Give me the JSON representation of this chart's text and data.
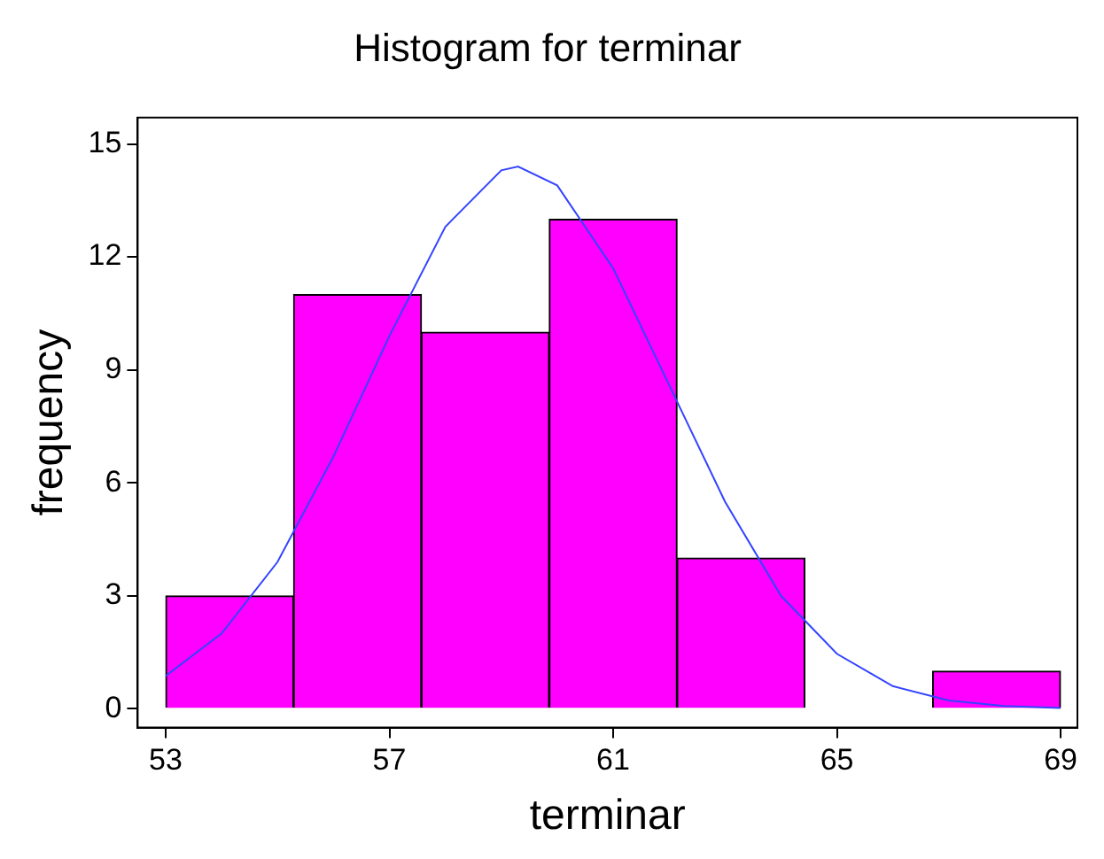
{
  "chart_data": {
    "type": "histogram",
    "title": "Histogram for terminar",
    "xlabel": "terminar",
    "ylabel": "frequency",
    "bins": [
      53,
      55.29,
      57.57,
      59.86,
      62.14,
      64.43,
      66.71,
      69
    ],
    "values": [
      3,
      11,
      10,
      13,
      4,
      0,
      1
    ],
    "color": "#ff00ff",
    "series": [
      {
        "type": "line",
        "color": "#3344ff",
        "x": [
          53,
          54,
          55,
          56,
          57,
          58,
          59,
          59.3,
          60,
          61,
          62,
          63,
          64,
          65,
          66,
          67,
          68,
          69
        ],
        "values": [
          0.87,
          2.0,
          3.9,
          6.7,
          9.9,
          12.8,
          14.3,
          14.4,
          13.9,
          11.7,
          8.6,
          5.5,
          3.0,
          1.46,
          0.6,
          0.22,
          0.07,
          0.02
        ]
      }
    ],
    "xlim": [
      52.5,
      69.3
    ],
    "xticks": [
      53,
      57,
      61,
      65,
      69
    ],
    "ylim": [
      -0.5,
      15.7
    ],
    "yticks": [
      0,
      3,
      6,
      9,
      12,
      15
    ],
    "grid": false,
    "legend": false
  }
}
